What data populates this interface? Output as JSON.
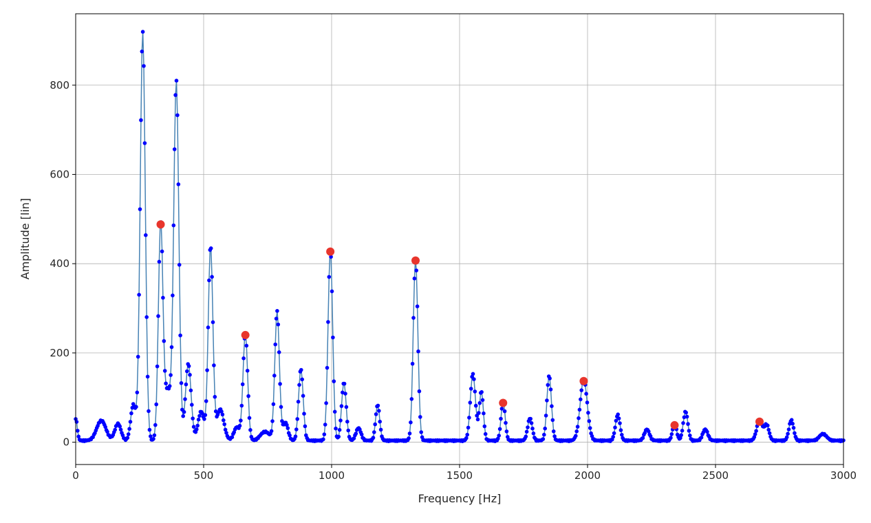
{
  "chart_data": {
    "type": "line",
    "title": "",
    "xlabel": "Frequency [Hz]",
    "ylabel": "Amplitude [lin]",
    "xlim": [
      0,
      3000
    ],
    "ylim": [
      -50,
      960
    ],
    "xticks": [
      0,
      500,
      1000,
      1500,
      2000,
      2500,
      3000
    ],
    "yticks": [
      0,
      200,
      400,
      600,
      800
    ],
    "grid": true,
    "colors": {
      "spectrum_line": "#4682b4",
      "spectrum_points": "#0000ff",
      "peak_markers": "#e8352c"
    },
    "spectrum_peaks": [
      {
        "f": 0,
        "a": 50,
        "w": 6
      },
      {
        "f": 100,
        "a": 45,
        "w": 18
      },
      {
        "f": 165,
        "a": 38,
        "w": 12
      },
      {
        "f": 225,
        "a": 80,
        "w": 10
      },
      {
        "f": 262,
        "a": 918,
        "w": 10
      },
      {
        "f": 332,
        "a": 488,
        "w": 9
      },
      {
        "f": 360,
        "a": 110,
        "w": 12
      },
      {
        "f": 393,
        "a": 806,
        "w": 10
      },
      {
        "f": 440,
        "a": 172,
        "w": 11
      },
      {
        "f": 490,
        "a": 65,
        "w": 12
      },
      {
        "f": 527,
        "a": 436,
        "w": 9
      },
      {
        "f": 565,
        "a": 70,
        "w": 14
      },
      {
        "f": 630,
        "a": 30,
        "w": 12
      },
      {
        "f": 663,
        "a": 240,
        "w": 9
      },
      {
        "f": 740,
        "a": 20,
        "w": 18
      },
      {
        "f": 787,
        "a": 290,
        "w": 9
      },
      {
        "f": 820,
        "a": 40,
        "w": 10
      },
      {
        "f": 880,
        "a": 160,
        "w": 9
      },
      {
        "f": 995,
        "a": 427,
        "w": 9
      },
      {
        "f": 1048,
        "a": 130,
        "w": 9
      },
      {
        "f": 1105,
        "a": 28,
        "w": 10
      },
      {
        "f": 1180,
        "a": 80,
        "w": 8
      },
      {
        "f": 1328,
        "a": 407,
        "w": 9
      },
      {
        "f": 1552,
        "a": 150,
        "w": 10
      },
      {
        "f": 1585,
        "a": 110,
        "w": 8
      },
      {
        "f": 1670,
        "a": 88,
        "w": 8
      },
      {
        "f": 1775,
        "a": 50,
        "w": 9
      },
      {
        "f": 1850,
        "a": 145,
        "w": 9
      },
      {
        "f": 1985,
        "a": 137,
        "w": 14
      },
      {
        "f": 2118,
        "a": 58,
        "w": 9
      },
      {
        "f": 2232,
        "a": 25,
        "w": 10
      },
      {
        "f": 2340,
        "a": 38,
        "w": 8
      },
      {
        "f": 2383,
        "a": 65,
        "w": 9
      },
      {
        "f": 2460,
        "a": 25,
        "w": 10
      },
      {
        "f": 2672,
        "a": 46,
        "w": 11
      },
      {
        "f": 2700,
        "a": 35,
        "w": 9
      },
      {
        "f": 2796,
        "a": 46,
        "w": 9
      },
      {
        "f": 2920,
        "a": 15,
        "w": 14
      }
    ],
    "highlighted_peaks": [
      {
        "x": 332,
        "y": 488
      },
      {
        "x": 663,
        "y": 240
      },
      {
        "x": 995,
        "y": 427
      },
      {
        "x": 1328,
        "y": 407
      },
      {
        "x": 1670,
        "y": 88
      },
      {
        "x": 1985,
        "y": 137
      },
      {
        "x": 2340,
        "y": 38
      },
      {
        "x": 2672,
        "y": 46
      }
    ]
  }
}
